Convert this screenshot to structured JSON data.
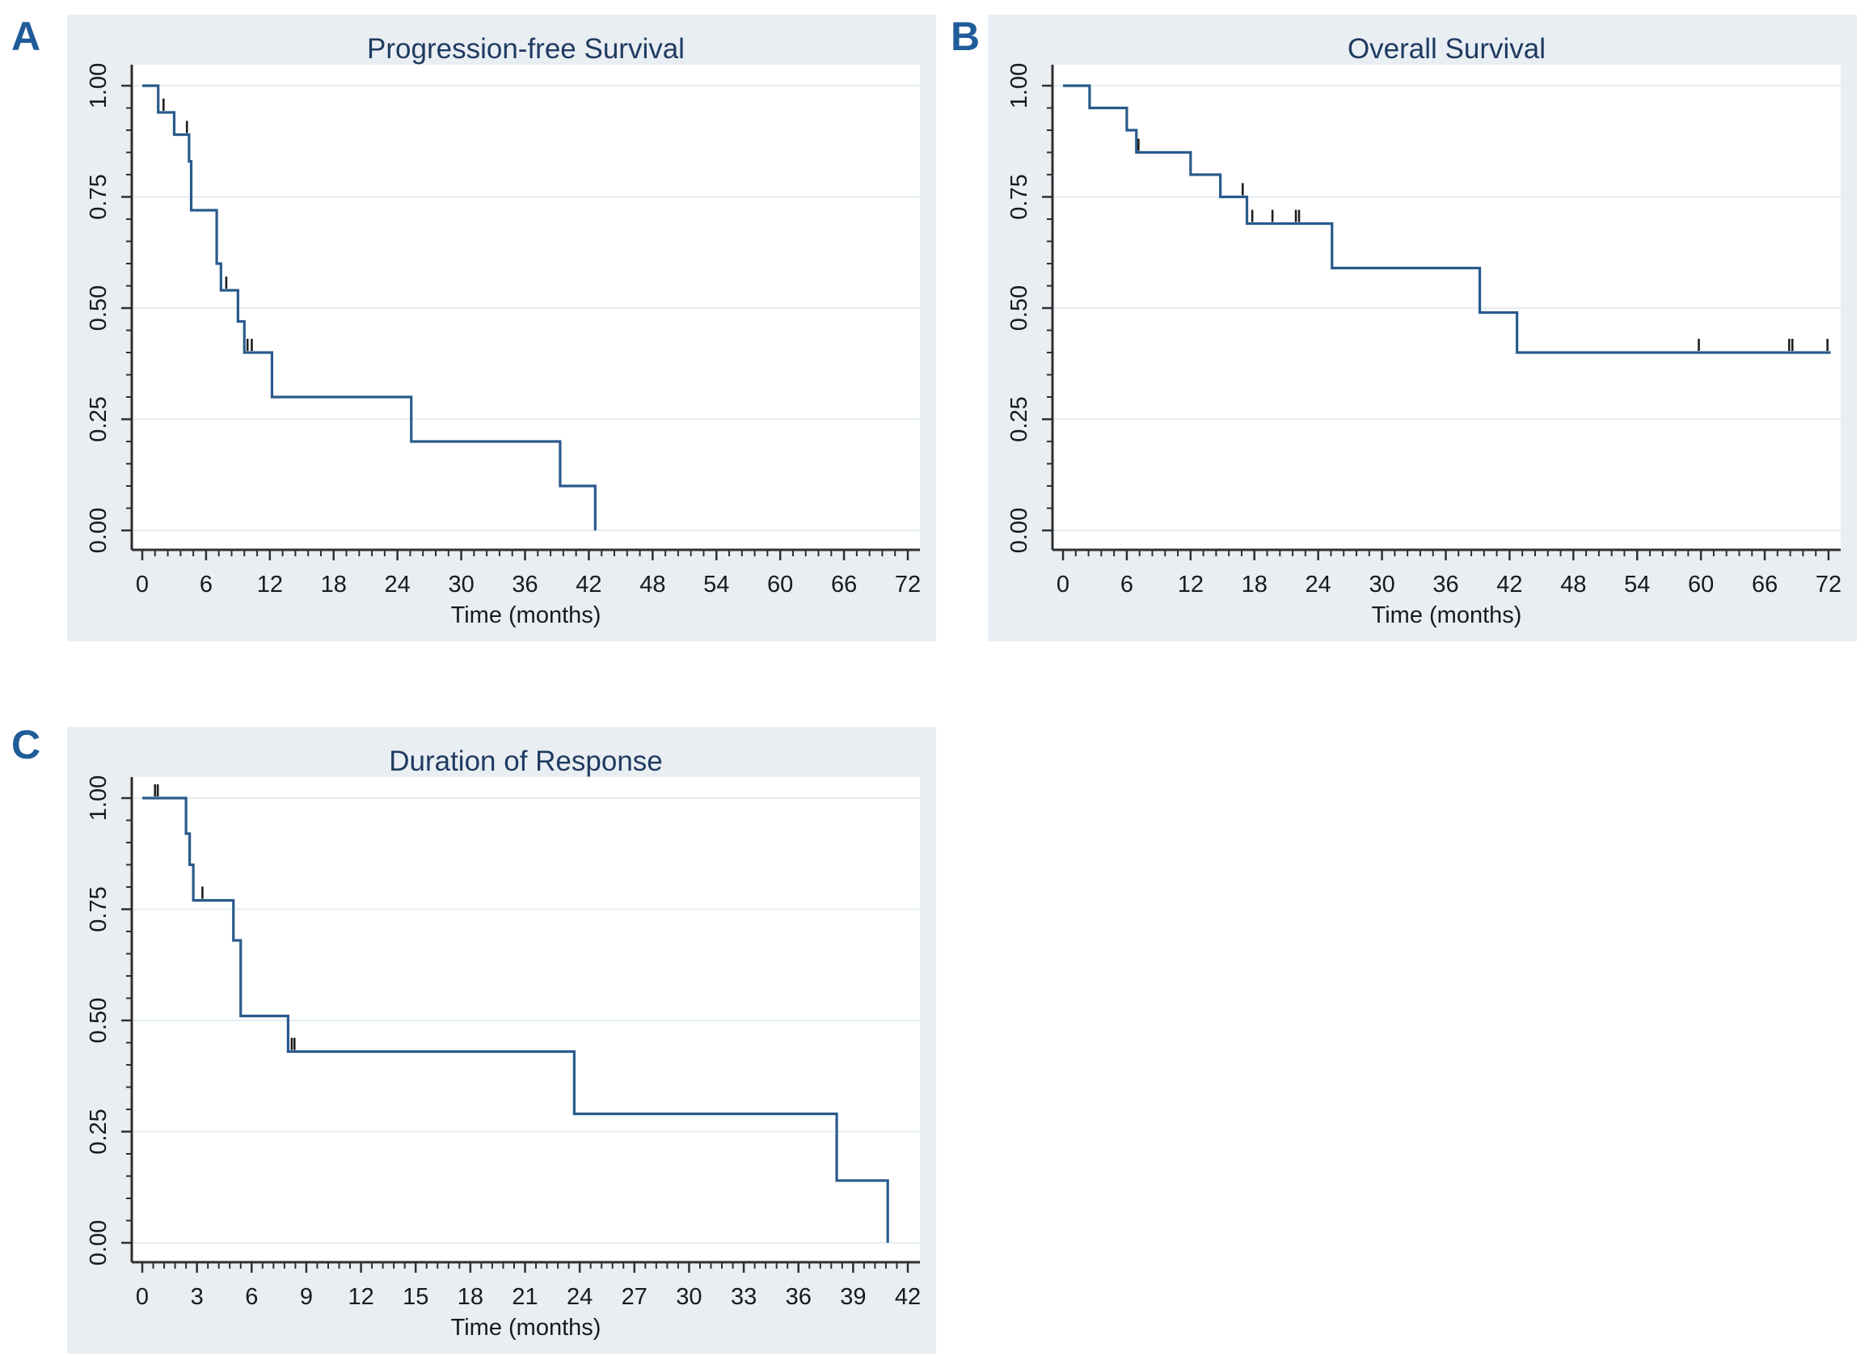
{
  "page": {
    "background": "#ffffff",
    "panel_letters": [
      {
        "label": "A"
      },
      {
        "label": "B"
      },
      {
        "label": "C"
      }
    ]
  },
  "colors": {
    "panel_background": "#e9eef3",
    "plot_background": "#ffffff",
    "gridline": "#e2edf3",
    "axis": "#2f2f2f",
    "tick_text": "#1a1a1a",
    "title_text": "#1f3a5f",
    "curve": "#2a5a8c",
    "censor_mark": "#1f1f1f",
    "letter": "#1f5c99"
  },
  "chart_data": [
    {
      "panel": "A",
      "type": "line",
      "subtype": "kaplan-meier-step",
      "title": "Progression-free Survival",
      "xlabel": "Time (months)",
      "ylabel": "",
      "legend": "none",
      "grid": "horizontal",
      "xlim": [
        0,
        73.5
      ],
      "ylim": [
        0,
        1
      ],
      "x_major_ticks": [
        0,
        6,
        12,
        18,
        24,
        30,
        36,
        42,
        48,
        54,
        60,
        66,
        72
      ],
      "x_minor_divisions_per_major": 5,
      "y_major_ticks": [
        0,
        0.25,
        0.5,
        0.75,
        1
      ],
      "y_tick_labels": [
        "0.00",
        "0.25",
        "0.50",
        "0.75",
        "1.00"
      ],
      "y_minor_step": 0.05,
      "steps": [
        [
          0,
          1.0
        ],
        [
          1.5,
          0.94
        ],
        [
          3.0,
          0.89
        ],
        [
          4.4,
          0.83
        ],
        [
          4.6,
          0.72
        ],
        [
          7.0,
          0.6
        ],
        [
          7.4,
          0.54
        ],
        [
          9.0,
          0.47
        ],
        [
          9.6,
          0.4
        ],
        [
          12.2,
          0.3
        ],
        [
          25.3,
          0.2
        ],
        [
          39.3,
          0.1
        ],
        [
          42.6,
          0.0
        ]
      ],
      "end_time": 42.6,
      "censor_marks": [
        [
          2.0,
          0.94
        ],
        [
          4.2,
          0.89
        ],
        [
          7.9,
          0.54
        ],
        [
          9.9,
          0.4
        ],
        [
          10.3,
          0.4
        ]
      ]
    },
    {
      "panel": "B",
      "type": "line",
      "subtype": "kaplan-meier-step",
      "title": "Overall Survival",
      "xlabel": "Time (months)",
      "ylabel": "",
      "legend": "none",
      "grid": "horizontal",
      "xlim": [
        0,
        73.5
      ],
      "ylim": [
        0,
        1
      ],
      "x_major_ticks": [
        0,
        6,
        12,
        18,
        24,
        30,
        36,
        42,
        48,
        54,
        60,
        66,
        72
      ],
      "x_minor_divisions_per_major": 5,
      "y_major_ticks": [
        0,
        0.25,
        0.5,
        0.75,
        1
      ],
      "y_tick_labels": [
        "0.00",
        "0.25",
        "0.50",
        "0.75",
        "1.00"
      ],
      "y_minor_step": 0.05,
      "steps": [
        [
          0,
          1.0
        ],
        [
          2.5,
          0.95
        ],
        [
          6.0,
          0.9
        ],
        [
          6.9,
          0.85
        ],
        [
          12.0,
          0.8
        ],
        [
          14.8,
          0.75
        ],
        [
          17.3,
          0.69
        ],
        [
          25.3,
          0.59
        ],
        [
          39.2,
          0.49
        ],
        [
          42.7,
          0.4
        ]
      ],
      "end_time": 72.2,
      "censor_marks": [
        [
          7.1,
          0.85
        ],
        [
          16.9,
          0.75
        ],
        [
          17.8,
          0.69
        ],
        [
          19.7,
          0.69
        ],
        [
          21.9,
          0.69
        ],
        [
          22.2,
          0.69
        ],
        [
          59.8,
          0.4
        ],
        [
          68.3,
          0.4
        ],
        [
          68.6,
          0.4
        ],
        [
          71.9,
          0.4
        ]
      ]
    },
    {
      "panel": "C",
      "type": "line",
      "subtype": "kaplan-meier-step",
      "title": "Duration of Response",
      "xlabel": "Time (months)",
      "ylabel": "",
      "legend": "none",
      "grid": "horizontal",
      "xlim": [
        0,
        43
      ],
      "ylim": [
        0,
        1
      ],
      "x_major_ticks": [
        0,
        3,
        6,
        9,
        12,
        15,
        18,
        21,
        24,
        27,
        30,
        33,
        36,
        39,
        42
      ],
      "x_minor_divisions_per_major": 5,
      "y_major_ticks": [
        0,
        0.25,
        0.5,
        0.75,
        1
      ],
      "y_tick_labels": [
        "0.00",
        "0.25",
        "0.50",
        "0.75",
        "1.00"
      ],
      "y_minor_step": 0.05,
      "steps": [
        [
          0,
          1.0
        ],
        [
          2.4,
          0.92
        ],
        [
          2.6,
          0.85
        ],
        [
          2.8,
          0.77
        ],
        [
          5.0,
          0.68
        ],
        [
          5.4,
          0.51
        ],
        [
          8.0,
          0.43
        ],
        [
          23.7,
          0.29
        ],
        [
          38.1,
          0.14
        ],
        [
          40.9,
          0.0
        ]
      ],
      "end_time": 40.9,
      "censor_marks": [
        [
          0.7,
          1.0
        ],
        [
          0.85,
          1.0
        ],
        [
          3.3,
          0.77
        ],
        [
          8.2,
          0.43
        ],
        [
          8.35,
          0.43
        ]
      ]
    }
  ]
}
